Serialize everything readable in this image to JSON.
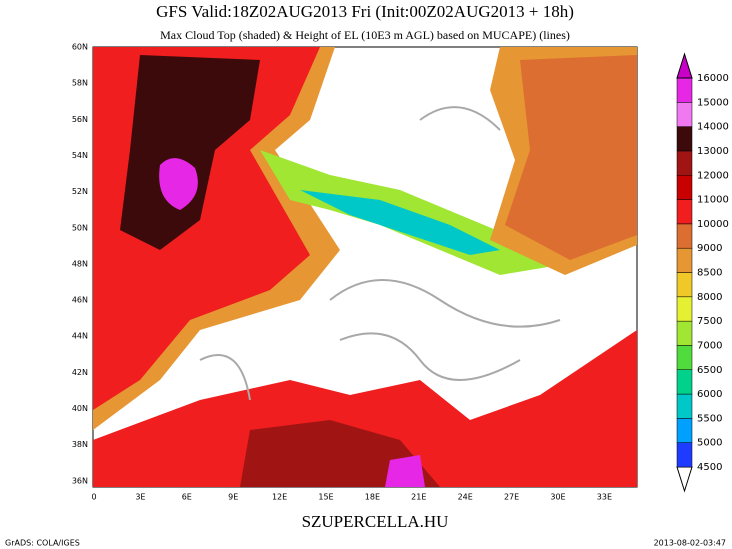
{
  "header": {
    "title": "GFS Valid:18Z02AUG2013 Fri (Init:00Z02AUG2013 + 18h)",
    "subtitle": "Max Cloud Top (shaded) & Height of EL (10E3 m AGL) based on MUCAPE) (lines)"
  },
  "map": {
    "lat_labels": [
      "60N",
      "58N",
      "56N",
      "54N",
      "52N",
      "50N",
      "48N",
      "46N",
      "44N",
      "42N",
      "40N",
      "38N",
      "36N"
    ],
    "lon_labels": [
      "0",
      "3E",
      "6E",
      "9E",
      "12E",
      "15E",
      "18E",
      "21E",
      "24E",
      "27E",
      "30E",
      "33E"
    ]
  },
  "colorbar": {
    "levels": [
      4500,
      5000,
      5500,
      6000,
      6500,
      7000,
      7500,
      8000,
      8500,
      9000,
      10000,
      11000,
      12000,
      13000,
      14000,
      15000,
      16000
    ],
    "colors": [
      "#ffffff",
      "#1e3cff",
      "#00a0ff",
      "#00c8c8",
      "#00d28c",
      "#50dc3c",
      "#a0e632",
      "#e6f032",
      "#f0c828",
      "#e69632",
      "#dc6e32",
      "#f01e1e",
      "#c80000",
      "#a01414",
      "#3c0a0a",
      "#f078f0",
      "#e628e6",
      "#c800c8"
    ]
  },
  "footer": {
    "credit": "GrADS: COLA/IGES",
    "site": "SZUPERCELLA.HU",
    "timestamp": "2013-08-02-03:47"
  }
}
